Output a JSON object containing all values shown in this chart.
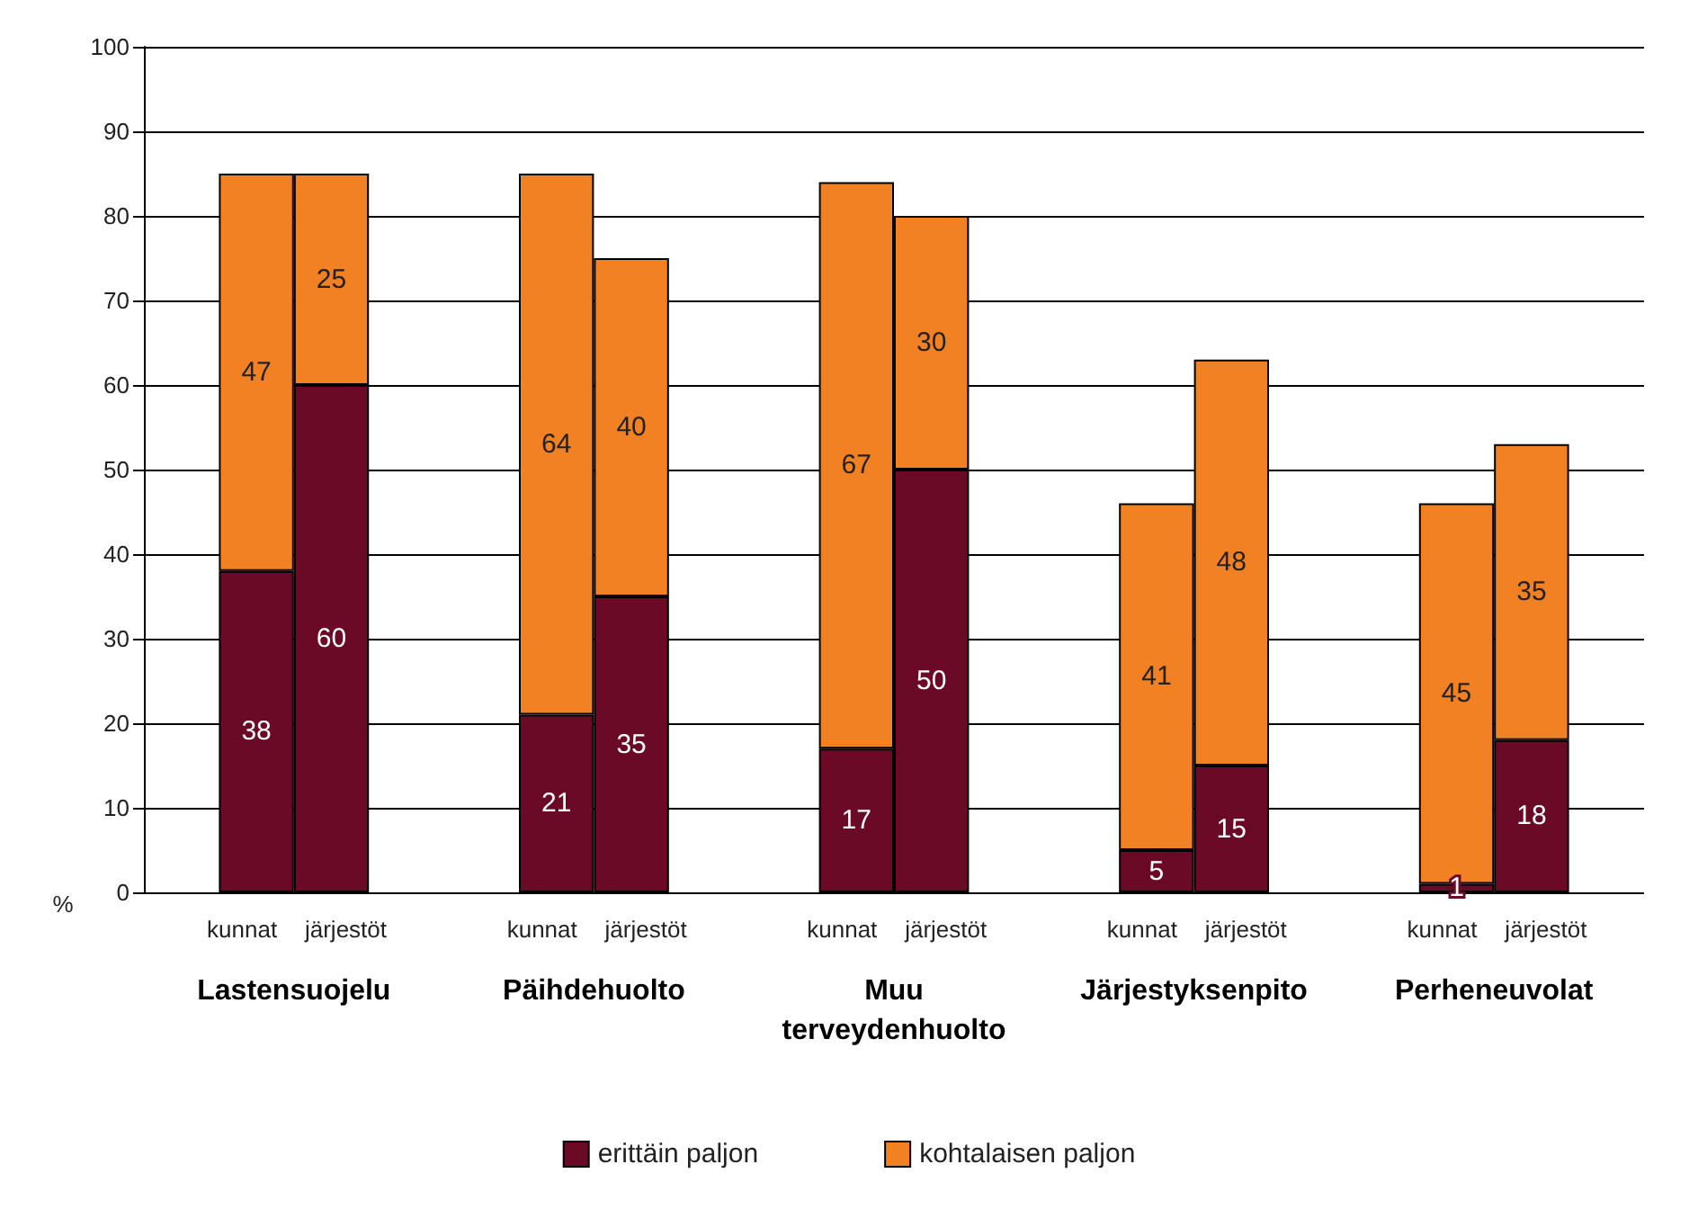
{
  "chart_data": {
    "type": "bar",
    "stacked": true,
    "ylabel": "%",
    "categories": [
      null,
      "kunnat",
      "järjestöt",
      null,
      null,
      "kunnat",
      "järjestöt",
      null,
      null,
      "kunnat",
      "järjestöt",
      null,
      null,
      "kunnat",
      "järjestöt",
      null,
      null,
      "kunnat",
      "järjestöt",
      null
    ],
    "series": [
      {
        "name": "erittäin paljon",
        "color": "#6b0a26",
        "values": [
          null,
          38,
          60,
          null,
          null,
          21,
          35,
          null,
          null,
          17,
          50,
          null,
          null,
          5,
          15,
          null,
          null,
          1,
          18,
          null
        ]
      },
      {
        "name": "kohtalaisen paljon",
        "color": "#f28123",
        "values": [
          null,
          47,
          25,
          null,
          null,
          64,
          40,
          null,
          null,
          67,
          30,
          null,
          null,
          41,
          48,
          null,
          null,
          45,
          35,
          null
        ]
      }
    ],
    "annotations": [
      "Lastensuojelu",
      "Päihdehuolto",
      "Muu\nterveydenhuolto",
      "Järjestyksenpito",
      "Perheneuvolat"
    ],
    "ylim": [
      0,
      100
    ],
    "yticks": [
      0,
      10,
      20,
      30,
      40,
      50,
      60,
      70,
      80,
      90,
      100
    ],
    "grid": "y",
    "legend": "bottom",
    "data_labels": true
  }
}
